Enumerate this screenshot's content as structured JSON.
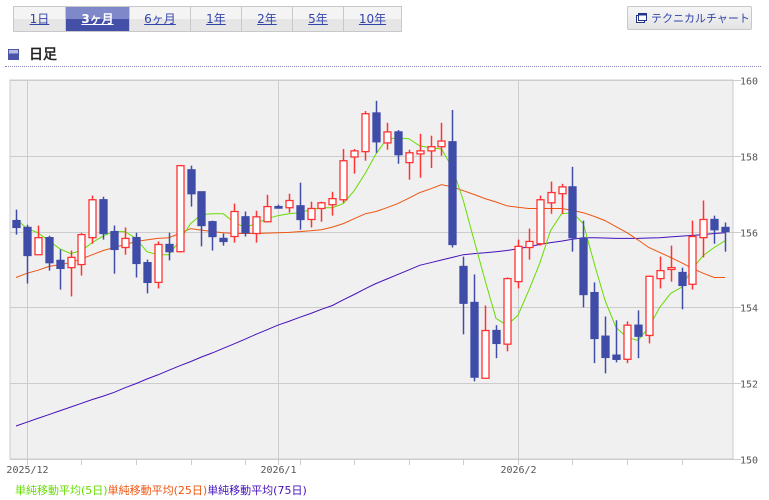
{
  "tabs": [
    {
      "label": "1日",
      "active": false
    },
    {
      "label": "3ヶ月",
      "active": true
    },
    {
      "label": "6ヶ月",
      "active": false
    },
    {
      "label": "1年",
      "active": false
    },
    {
      "label": "2年",
      "active": false
    },
    {
      "label": "5年",
      "active": false
    },
    {
      "label": "10年",
      "active": false
    }
  ],
  "technical_button": {
    "label": "テクニカルチャート",
    "icon": "window-icon"
  },
  "section_title": "日足",
  "chart_data": {
    "type": "candlestick",
    "ylim": [
      150,
      160
    ],
    "y_ticks": [
      "160",
      "158",
      "156",
      "154",
      "152",
      "150"
    ],
    "x_labels": [
      {
        "label": "2025/12",
        "index": 1
      },
      {
        "label": "2026/1",
        "index": 24
      },
      {
        "label": "2026/2",
        "index": 46
      }
    ],
    "x_minor_tick_indices": [
      1,
      6,
      11,
      16,
      21,
      26,
      31,
      36,
      41,
      46,
      51,
      56,
      61
    ],
    "grid": true,
    "colors": {
      "up": "#ff3333",
      "down": "#3f4ca8",
      "ma5": "#66dd00",
      "ma25": "#ee5511",
      "ma75": "#4411bb",
      "plot_bg": "#f0f0f0",
      "grid": "#cccccc"
    },
    "ohlc": [
      [
        156.29,
        156.58,
        155.92,
        156.11
      ],
      [
        156.11,
        156.18,
        154.63,
        155.37
      ],
      [
        155.39,
        156.16,
        155.39,
        155.84
      ],
      [
        155.84,
        155.89,
        154.97,
        155.18
      ],
      [
        155.24,
        155.53,
        154.47,
        155.03
      ],
      [
        155.05,
        155.5,
        154.29,
        155.32
      ],
      [
        155.13,
        155.97,
        154.84,
        155.92
      ],
      [
        155.84,
        156.95,
        155.68,
        156.84
      ],
      [
        156.84,
        156.92,
        155.79,
        155.95
      ],
      [
        156.0,
        156.16,
        154.89,
        155.53
      ],
      [
        155.58,
        156.11,
        155.39,
        155.82
      ],
      [
        155.84,
        155.97,
        154.79,
        155.16
      ],
      [
        155.18,
        155.26,
        154.37,
        154.66
      ],
      [
        154.66,
        155.74,
        154.5,
        155.66
      ],
      [
        155.66,
        155.97,
        155.24,
        155.47
      ],
      [
        155.47,
        157.76,
        155.45,
        157.74
      ],
      [
        157.63,
        157.74,
        156.66,
        157.0
      ],
      [
        157.05,
        157.05,
        155.61,
        156.16
      ],
      [
        156.26,
        156.29,
        155.5,
        155.87
      ],
      [
        155.82,
        155.95,
        155.63,
        155.74
      ],
      [
        155.87,
        156.74,
        155.71,
        156.53
      ],
      [
        156.39,
        156.53,
        155.87,
        155.97
      ],
      [
        155.95,
        156.55,
        155.71,
        156.39
      ],
      [
        156.26,
        156.97,
        156.24,
        156.66
      ],
      [
        156.66,
        156.71,
        156.61,
        156.63
      ],
      [
        156.63,
        157.0,
        156.5,
        156.82
      ],
      [
        156.68,
        157.29,
        156.05,
        156.32
      ],
      [
        156.32,
        156.79,
        156.11,
        156.61
      ],
      [
        156.61,
        156.79,
        156.26,
        156.76
      ],
      [
        156.71,
        157.05,
        156.42,
        156.87
      ],
      [
        156.84,
        158.18,
        156.76,
        157.87
      ],
      [
        157.97,
        158.18,
        157.53,
        158.13
      ],
      [
        158.11,
        159.18,
        157.87,
        159.11
      ],
      [
        159.13,
        159.45,
        158.08,
        158.37
      ],
      [
        158.34,
        158.87,
        158.16,
        158.63
      ],
      [
        158.63,
        158.68,
        157.79,
        158.03
      ],
      [
        157.82,
        158.16,
        157.37,
        158.08
      ],
      [
        158.05,
        158.58,
        157.42,
        158.13
      ],
      [
        158.13,
        158.53,
        157.68,
        158.24
      ],
      [
        158.24,
        158.87,
        158.0,
        158.39
      ],
      [
        158.37,
        159.21,
        155.58,
        155.66
      ],
      [
        155.08,
        155.34,
        153.29,
        154.11
      ],
      [
        154.13,
        154.87,
        152.05,
        152.16
      ],
      [
        152.13,
        154.05,
        152.13,
        153.39
      ],
      [
        153.39,
        153.53,
        152.66,
        153.05
      ],
      [
        153.03,
        154.79,
        152.84,
        154.76
      ],
      [
        154.68,
        155.79,
        154.5,
        155.61
      ],
      [
        155.58,
        156.08,
        155.26,
        155.74
      ],
      [
        155.68,
        156.95,
        155.63,
        156.84
      ],
      [
        156.76,
        157.32,
        156.47,
        157.03
      ],
      [
        157.0,
        157.26,
        156.47,
        157.18
      ],
      [
        157.18,
        157.71,
        155.47,
        155.84
      ],
      [
        155.82,
        156.29,
        154.0,
        154.34
      ],
      [
        154.39,
        154.66,
        152.53,
        153.18
      ],
      [
        153.24,
        153.76,
        152.26,
        152.68
      ],
      [
        152.74,
        153.66,
        152.55,
        152.63
      ],
      [
        152.63,
        153.63,
        152.53,
        153.53
      ],
      [
        153.53,
        153.92,
        152.66,
        153.24
      ],
      [
        153.26,
        154.84,
        153.05,
        154.82
      ],
      [
        154.76,
        155.34,
        154.5,
        154.97
      ],
      [
        155.0,
        155.63,
        154.68,
        155.05
      ],
      [
        154.92,
        155.05,
        153.95,
        154.58
      ],
      [
        154.61,
        156.29,
        154.47,
        155.87
      ],
      [
        155.84,
        156.82,
        155.32,
        156.32
      ],
      [
        156.32,
        156.42,
        155.68,
        156.05
      ],
      [
        156.11,
        156.24,
        155.47,
        156.0
      ]
    ],
    "series": [
      {
        "name": "単純移動平均(5日)",
        "values": [
          156.34,
          156.08,
          155.97,
          155.76,
          155.55,
          155.42,
          155.5,
          155.71,
          155.89,
          156.0,
          156.0,
          155.82,
          155.47,
          155.39,
          155.39,
          155.76,
          156.21,
          156.45,
          156.47,
          156.47,
          156.24,
          156.11,
          156.21,
          156.34,
          156.42,
          156.47,
          156.5,
          156.58,
          156.63,
          156.63,
          156.74,
          157.08,
          157.53,
          158.05,
          158.45,
          158.47,
          158.45,
          158.26,
          158.21,
          158.18,
          157.68,
          156.82,
          155.76,
          154.71,
          153.71,
          153.53,
          153.79,
          154.45,
          155.16,
          156.03,
          156.47,
          156.5,
          156.21,
          155.16,
          154.18,
          153.47,
          153.21,
          153.13,
          153.47,
          154.0,
          154.37,
          154.53,
          155.03,
          155.37,
          155.58,
          155.76
        ]
      },
      {
        "name": "単純移動平均(25日)",
        "values": [
          154.79,
          154.9,
          154.98,
          155.08,
          155.13,
          155.18,
          155.28,
          155.39,
          155.5,
          155.58,
          155.66,
          155.74,
          155.78,
          155.82,
          155.84,
          155.95,
          156.08,
          156.04,
          156.0,
          155.97,
          155.95,
          155.95,
          155.95,
          155.96,
          155.97,
          155.98,
          156.0,
          156.02,
          156.05,
          156.12,
          156.21,
          156.34,
          156.47,
          156.53,
          156.63,
          156.74,
          156.88,
          157.03,
          157.13,
          157.24,
          157.18,
          157.08,
          156.98,
          156.87,
          156.78,
          156.68,
          156.64,
          156.61,
          156.61,
          156.61,
          156.61,
          156.56,
          156.5,
          156.4,
          156.29,
          156.13,
          155.97,
          155.78,
          155.58,
          155.45,
          155.32,
          155.18,
          155.03,
          154.9,
          154.79,
          154.79
        ]
      },
      {
        "name": "単純移動平均(75日)",
        "values": [
          150.87,
          150.97,
          151.07,
          151.17,
          151.27,
          151.37,
          151.47,
          151.57,
          151.66,
          151.76,
          151.88,
          151.99,
          152.11,
          152.22,
          152.34,
          152.46,
          152.57,
          152.69,
          152.8,
          152.92,
          153.04,
          153.16,
          153.29,
          153.41,
          153.53,
          153.63,
          153.74,
          153.84,
          153.95,
          154.05,
          154.2,
          154.34,
          154.49,
          154.63,
          154.75,
          154.87,
          154.99,
          155.11,
          155.18,
          155.25,
          155.32,
          155.39,
          155.42,
          155.44,
          155.47,
          155.5,
          155.55,
          155.6,
          155.66,
          155.71,
          155.75,
          155.8,
          155.84,
          155.84,
          155.83,
          155.82,
          155.82,
          155.82,
          155.83,
          155.84,
          155.86,
          155.88,
          155.9,
          155.92,
          155.95,
          155.97
        ]
      }
    ]
  }
}
